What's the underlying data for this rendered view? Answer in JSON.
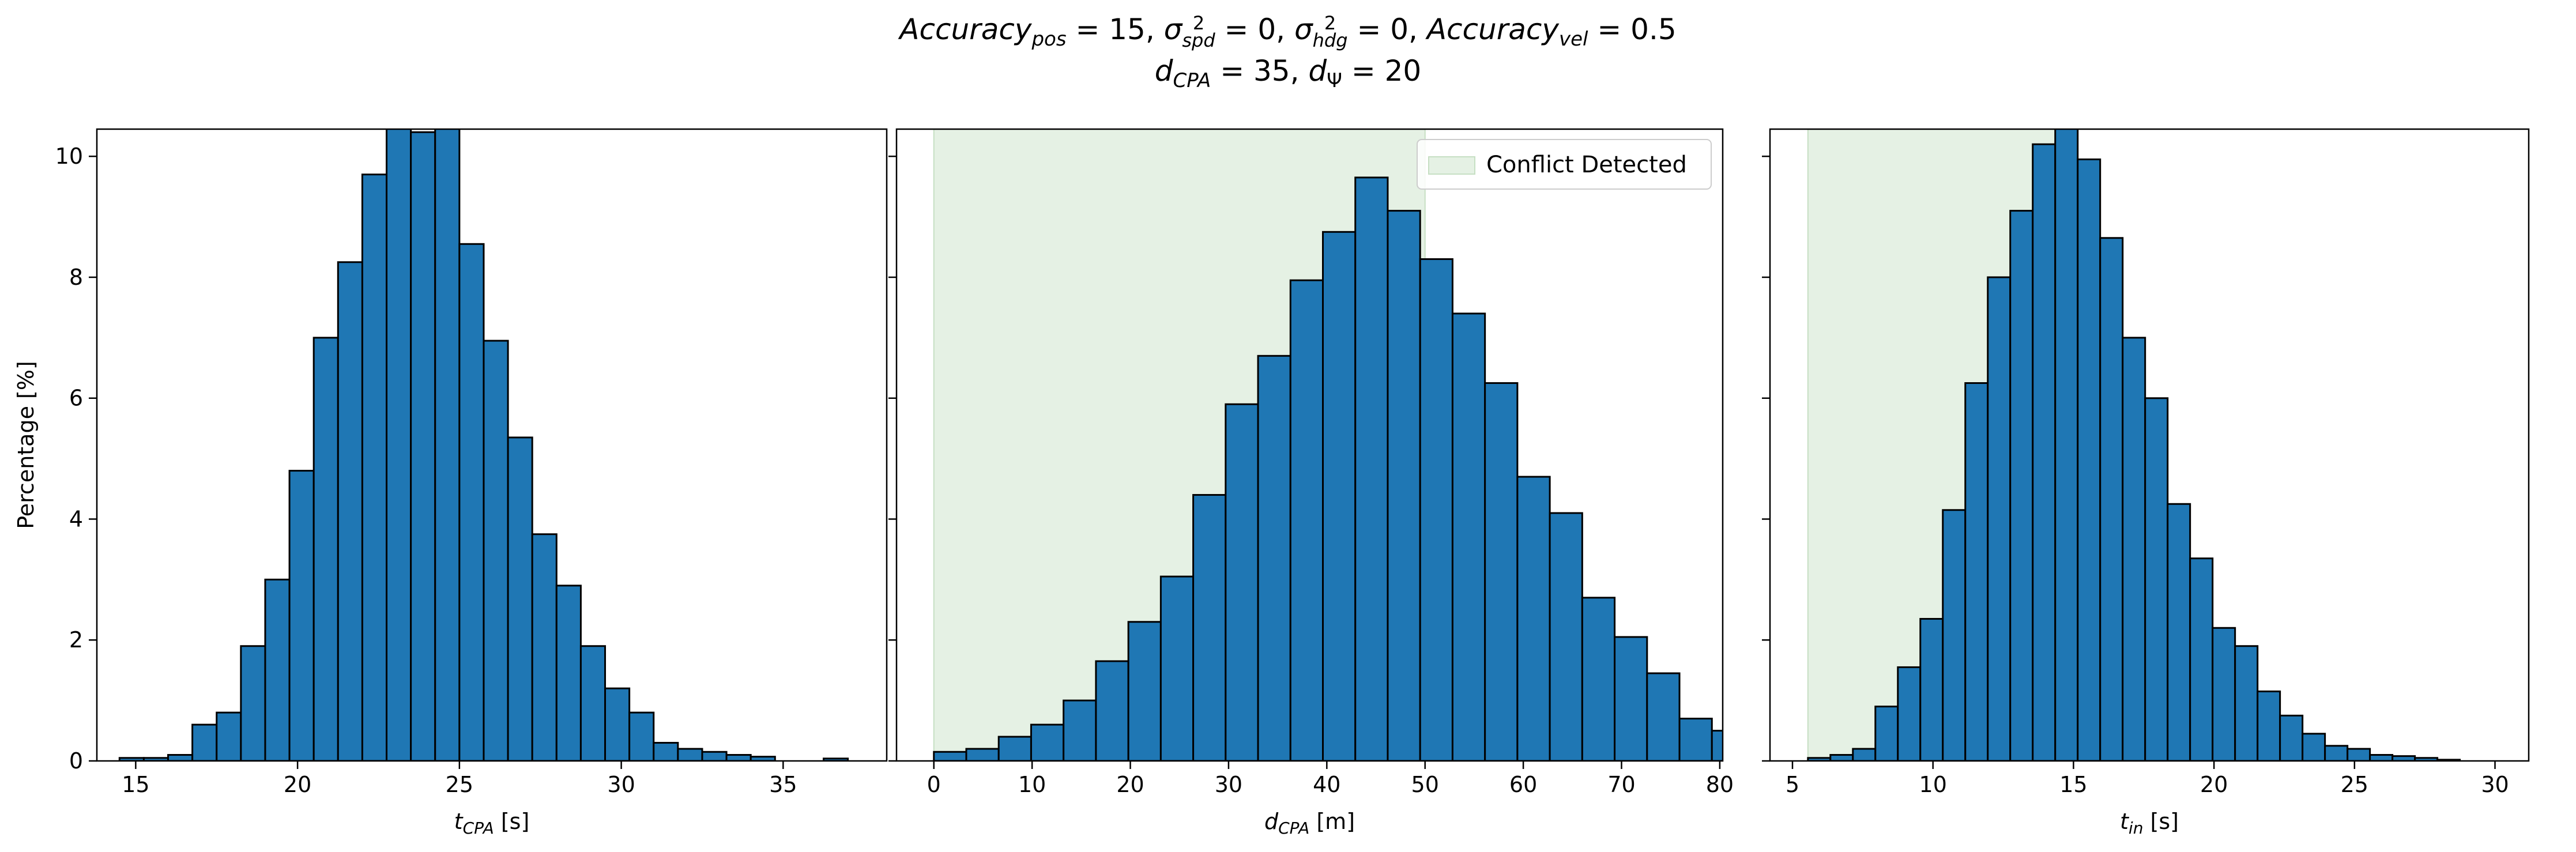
{
  "figure": {
    "title_line1": {
      "acc_pos_base": "Accuracy",
      "acc_pos_sub": "pos",
      "acc_pos_val": " = 15, ",
      "spd_sym": "σ",
      "spd_sup": "2",
      "spd_sub": "spd",
      "spd_val": " = 0, ",
      "hdg_sym": "σ",
      "hdg_sup": "2",
      "hdg_sub": "hdg",
      "hdg_val": " = 0, ",
      "acc_vel_base": "Accuracy",
      "acc_vel_sub": "vel",
      "acc_vel_val": " = 0.5"
    },
    "title_line2": {
      "dcpa_base": "d",
      "dcpa_sub": "CPA",
      "dcpa_val": " = 35, ",
      "dpsi_base": "d",
      "dpsi_sub": "Ψ",
      "dpsi_val": " = 20"
    }
  },
  "chart_data": [
    {
      "type": "bar",
      "xlabel_base": "t",
      "xlabel_sub": "CPA",
      "xlabel_unit": " [s]",
      "ylabel": "Percentage [%]",
      "xlim": [
        13.8,
        38.2
      ],
      "ylim": [
        0,
        10.45
      ],
      "xticks": [
        15,
        20,
        25,
        30,
        35
      ],
      "yticks": [
        0,
        2,
        4,
        6,
        8,
        10
      ],
      "bin_start": 14.5,
      "bin_width": 0.75,
      "values": [
        0.05,
        0.05,
        0.1,
        0.6,
        0.8,
        1.9,
        3.0,
        4.8,
        7.0,
        8.25,
        9.7,
        10.8,
        10.4,
        10.7,
        8.55,
        6.95,
        5.35,
        3.75,
        2.9,
        1.9,
        1.2,
        0.8,
        0.3,
        0.2,
        0.15,
        0.1,
        0.07,
        0.0,
        0.0,
        0.04
      ],
      "shade": null,
      "legend": null,
      "bar_color": "#1f77b4"
    },
    {
      "type": "bar",
      "xlabel_base": "d",
      "xlabel_sub": "CPA",
      "xlabel_unit": " [m]",
      "ylabel": "",
      "xlim": [
        -3.8,
        80.3
      ],
      "ylim": [
        0,
        10.45
      ],
      "xticks": [
        0,
        10,
        20,
        30,
        40,
        50,
        60,
        70,
        80
      ],
      "yticks": [
        0,
        2,
        4,
        6,
        8,
        10
      ],
      "bin_start": 0.0,
      "bin_width": 3.3,
      "values": [
        0.15,
        0.2,
        0.4,
        0.6,
        1.0,
        1.65,
        2.3,
        3.05,
        4.4,
        5.9,
        6.7,
        7.95,
        8.75,
        9.65,
        9.1,
        8.3,
        7.4,
        6.25,
        4.7,
        4.1,
        2.7,
        2.05,
        1.45,
        0.7,
        0.5,
        0.2,
        0.15,
        0.05,
        0.02,
        0.0
      ],
      "shade": [
        0,
        50
      ],
      "legend": "Conflict Detected",
      "legend_position": "top-right",
      "bar_color": "#1f77b4",
      "shade_color": "#e5f1e4"
    },
    {
      "type": "bar",
      "xlabel_base": "t",
      "xlabel_sub": "in",
      "xlabel_unit": " [s]",
      "ylabel": "",
      "xlim": [
        4.2,
        31.2
      ],
      "ylim": [
        0,
        10.45
      ],
      "xticks": [
        5,
        10,
        15,
        20,
        25,
        30
      ],
      "yticks": [
        0,
        2,
        4,
        6,
        8,
        10
      ],
      "bin_start": 5.55,
      "bin_width": 0.8,
      "values": [
        0.05,
        0.1,
        0.2,
        0.9,
        1.55,
        2.35,
        4.15,
        6.25,
        8.0,
        9.1,
        10.2,
        10.5,
        9.95,
        8.65,
        7.0,
        6.0,
        4.25,
        3.35,
        2.2,
        1.9,
        1.15,
        0.75,
        0.45,
        0.25,
        0.2,
        0.1,
        0.08,
        0.05,
        0.02,
        0.0
      ],
      "shade": [
        5.55,
        15
      ],
      "legend": null,
      "bar_color": "#1f77b4",
      "shade_color": "#e5f1e4"
    }
  ]
}
